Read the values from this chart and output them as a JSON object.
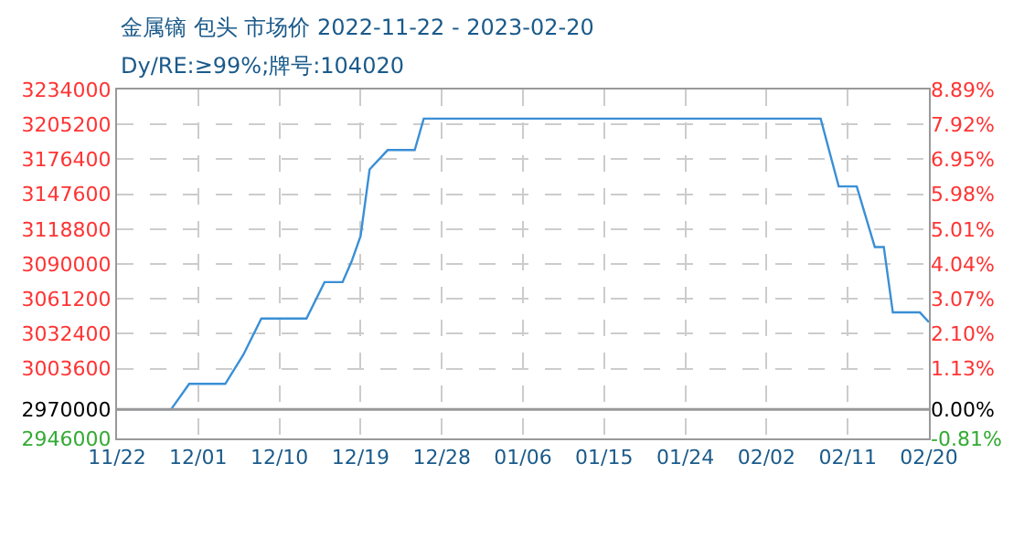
{
  "chart_data": {
    "type": "line",
    "title": "金属镝 包头 市场价 2022-11-22 - 2023-02-20",
    "subtitle": "Dy/RE:≥99%;牌号:104020",
    "x": [
      "2022-11-22",
      "2022-11-28",
      "2022-11-30",
      "2022-12-04",
      "2022-12-06",
      "2022-12-08",
      "2022-12-13",
      "2022-12-15",
      "2022-12-17",
      "2022-12-18",
      "2022-12-19",
      "2022-12-20",
      "2022-12-22",
      "2022-12-25",
      "2022-12-26",
      "2023-02-08",
      "2023-02-10",
      "2023-02-12",
      "2023-02-14",
      "2023-02-15",
      "2023-02-16",
      "2023-02-19",
      "2023-02-20"
    ],
    "series": [
      {
        "color": "#3a8fd6",
        "values": [
          2970000,
          2970000,
          2991000,
          2991000,
          3015000,
          3045000,
          3045000,
          3075000,
          3075000,
          3092000,
          3113000,
          3168000,
          3184000,
          3184000,
          3210000,
          3210000,
          3154000,
          3154000,
          3104000,
          3104000,
          3050000,
          3050000,
          3042000
        ]
      }
    ],
    "xlim": [
      "2022-11-22",
      "2023-02-20"
    ],
    "xticks": [
      {
        "value": "2022-11-22",
        "label": "11/22"
      },
      {
        "value": "2022-12-01",
        "label": "12/01"
      },
      {
        "value": "2022-12-10",
        "label": "12/10"
      },
      {
        "value": "2022-12-19",
        "label": "12/19"
      },
      {
        "value": "2022-12-28",
        "label": "12/28"
      },
      {
        "value": "2023-01-06",
        "label": "01/06"
      },
      {
        "value": "2023-01-15",
        "label": "01/15"
      },
      {
        "value": "2023-01-24",
        "label": "01/24"
      },
      {
        "value": "2023-02-02",
        "label": "02/02"
      },
      {
        "value": "2023-02-11",
        "label": "02/11"
      },
      {
        "value": "2023-02-20",
        "label": "02/20"
      }
    ],
    "ylim": [
      2946000,
      3234000
    ],
    "yticks": [
      2946000,
      2970000,
      3003600,
      3032400,
      3061200,
      3090000,
      3118800,
      3147600,
      3176400,
      3205200,
      3234000
    ],
    "y2lim": [
      -0.81,
      8.89
    ],
    "y2ticks": [
      {
        "value": -0.81,
        "label": "-0.81%"
      },
      {
        "value": 0,
        "label": "0.00%"
      },
      {
        "value": 1.13,
        "label": "1.13%"
      },
      {
        "value": 2.1,
        "label": "2.10%"
      },
      {
        "value": 3.07,
        "label": "3.07%"
      },
      {
        "value": 4.04,
        "label": "4.04%"
      },
      {
        "value": 5.01,
        "label": "5.01%"
      },
      {
        "value": 5.98,
        "label": "5.98%"
      },
      {
        "value": 6.95,
        "label": "6.95%"
      },
      {
        "value": 7.92,
        "label": "7.92%"
      },
      {
        "value": 8.89,
        "label": "8.89%"
      }
    ],
    "ref_lines": [
      {
        "axis": "y",
        "value": 2970000,
        "color": "#999999"
      }
    ],
    "grid": true,
    "legend": false,
    "line_style": "solid",
    "marker": "none"
  }
}
